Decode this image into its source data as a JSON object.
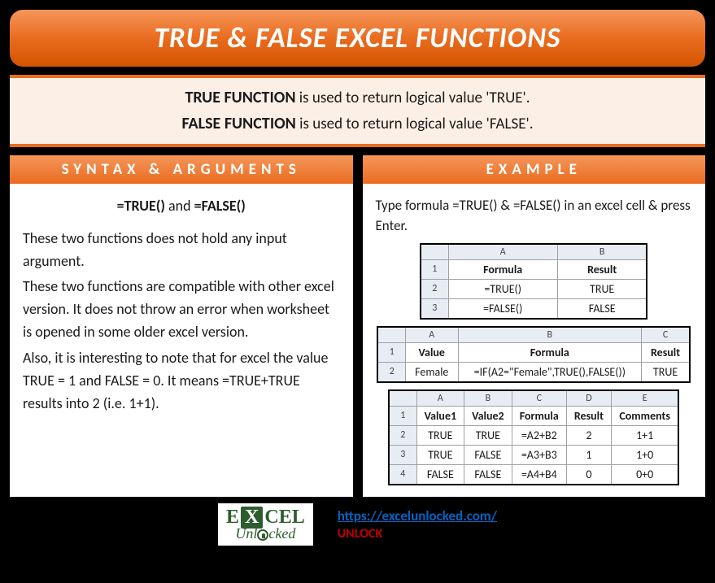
{
  "banner": {
    "title": "TRUE & FALSE EXCEL FUNCTIONS"
  },
  "intro": {
    "line1_bold": "TRUE FUNCTION",
    "line1_rest": " is used to return logical value 'TRUE'.",
    "line2_bold": "FALSE FUNCTION",
    "line2_rest": " is used to return logical value 'FALSE'."
  },
  "syntax": {
    "header": "SYNTAX & ARGUMENTS",
    "formula_pre": "=TRUE()",
    "formula_mid": " and ",
    "formula_post": "=FALSE()",
    "p1": "These two functions does not hold any input argument.",
    "p2": "These two functions are compatible with other excel version. It does not throw an error when worksheet is opened in some older excel version.",
    "p3": "Also, it is interesting to note that for excel the value TRUE = 1 and FALSE = 0. It means =TRUE+TRUE results into 2 (i.e. 1+1)."
  },
  "example": {
    "header": "EXAMPLE",
    "intro": "Type formula =TRUE() & =FALSE() in an excel cell & press Enter.",
    "table1": {
      "col_letters": [
        "A",
        "B"
      ],
      "headers": [
        "Formula",
        "Result"
      ],
      "rows": [
        {
          "rn": "2",
          "cells": [
            "=TRUE()",
            "TRUE"
          ]
        },
        {
          "rn": "3",
          "cells": [
            "=FALSE()",
            "FALSE"
          ]
        }
      ]
    },
    "table2": {
      "col_letters": [
        "A",
        "B",
        "C"
      ],
      "headers": [
        "Value",
        "Formula",
        "Result"
      ],
      "rows": [
        {
          "rn": "2",
          "cells": [
            "Female",
            "=IF(A2=\"Female\",TRUE(),FALSE())",
            "TRUE"
          ]
        }
      ]
    },
    "table3": {
      "col_letters": [
        "A",
        "B",
        "C",
        "D",
        "E"
      ],
      "headers": [
        "Value1",
        "Value2",
        "Formula",
        "Result",
        "Comments"
      ],
      "rows": [
        {
          "rn": "2",
          "cells": [
            "TRUE",
            "TRUE",
            "=A2+B2",
            "2",
            "1+1"
          ]
        },
        {
          "rn": "3",
          "cells": [
            "TRUE",
            "FALSE",
            "=A3+B3",
            "1",
            "1+0"
          ]
        },
        {
          "rn": "4",
          "cells": [
            "FALSE",
            "FALSE",
            "=A4+B4",
            "0",
            "0+0"
          ]
        }
      ]
    }
  },
  "footer": {
    "logo_e": "E",
    "logo_x": "X",
    "logo_cel": "CEL",
    "logo_sub": "Unl",
    "logo_sub2": "cked",
    "url": "https://excelunlocked.com/",
    "unlock": "UNLOCK"
  },
  "colors": {
    "orange_light": "#f5965a",
    "orange_mid": "#e96c1f",
    "orange_dark": "#d35400",
    "intro_bg": "#fcefe6",
    "link": "#0563c1",
    "red": "#c00000",
    "logo_green": "#2e5c2e",
    "excel_header_bg": "#e8edf4"
  }
}
